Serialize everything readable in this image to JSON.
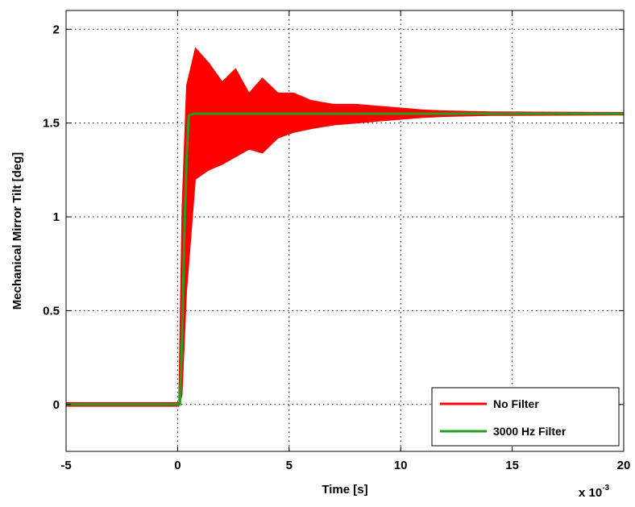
{
  "chart_data": {
    "type": "line",
    "title": "",
    "xlabel": "Time [s]",
    "ylabel": "Mechanical Mirror Tilt [deg]",
    "x_multiplier": {
      "base": "x 10",
      "exponent": "-3"
    },
    "xlim": [
      -5,
      20
    ],
    "ylim": [
      -0.25,
      2.1
    ],
    "xticks": [
      -5,
      0,
      5,
      10,
      15,
      20
    ],
    "xtick_labels": [
      "-5",
      "0",
      "5",
      "10",
      "15",
      "20"
    ],
    "yticks": [
      0,
      0.5,
      1,
      1.5,
      2
    ],
    "ytick_labels": [
      "0",
      "0.5",
      "1",
      "1.5",
      "2"
    ],
    "grid": true,
    "legend_position": "bottom-right",
    "series": [
      {
        "name": "No Filter",
        "color": "#ff0000",
        "style": "step response with decaying oscillation; filled band shows envelope of high-frequency ripple",
        "baseline": 0.0,
        "step_time": 0.1,
        "final_value": 1.55,
        "envelope": [
          {
            "x": -5.0,
            "low": -0.01,
            "high": 0.01
          },
          {
            "x": 0.05,
            "low": -0.01,
            "high": 0.01
          },
          {
            "x": 0.2,
            "low": 0.05,
            "high": 1.05
          },
          {
            "x": 0.4,
            "low": 0.6,
            "high": 1.7
          },
          {
            "x": 0.8,
            "low": 1.2,
            "high": 1.9
          },
          {
            "x": 1.4,
            "low": 1.25,
            "high": 1.82
          },
          {
            "x": 2.0,
            "low": 1.28,
            "high": 1.72
          },
          {
            "x": 2.6,
            "low": 1.32,
            "high": 1.79
          },
          {
            "x": 3.2,
            "low": 1.36,
            "high": 1.66
          },
          {
            "x": 3.8,
            "low": 1.34,
            "high": 1.74
          },
          {
            "x": 4.5,
            "low": 1.42,
            "high": 1.66
          },
          {
            "x": 5.2,
            "low": 1.45,
            "high": 1.66
          },
          {
            "x": 6.0,
            "low": 1.47,
            "high": 1.62
          },
          {
            "x": 7.0,
            "low": 1.49,
            "high": 1.6
          },
          {
            "x": 8.0,
            "low": 1.5,
            "high": 1.6
          },
          {
            "x": 9.0,
            "low": 1.51,
            "high": 1.59
          },
          {
            "x": 10.0,
            "low": 1.52,
            "high": 1.58
          },
          {
            "x": 11.0,
            "low": 1.53,
            "high": 1.57
          },
          {
            "x": 12.0,
            "low": 1.535,
            "high": 1.565
          },
          {
            "x": 14.0,
            "low": 1.54,
            "high": 1.56
          },
          {
            "x": 20.0,
            "low": 1.543,
            "high": 1.557
          }
        ]
      },
      {
        "name": "3000 Hz Filter",
        "color": "#22a022",
        "x": [
          -5.0,
          0.0,
          0.1,
          0.2,
          0.3,
          0.4,
          0.5,
          0.7,
          1.0,
          2.0,
          5.0,
          10.0,
          15.0,
          20.0
        ],
        "y": [
          0.0,
          0.0,
          0.0,
          0.35,
          0.9,
          1.3,
          1.54,
          1.55,
          1.55,
          1.55,
          1.55,
          1.55,
          1.55,
          1.55
        ]
      }
    ]
  }
}
